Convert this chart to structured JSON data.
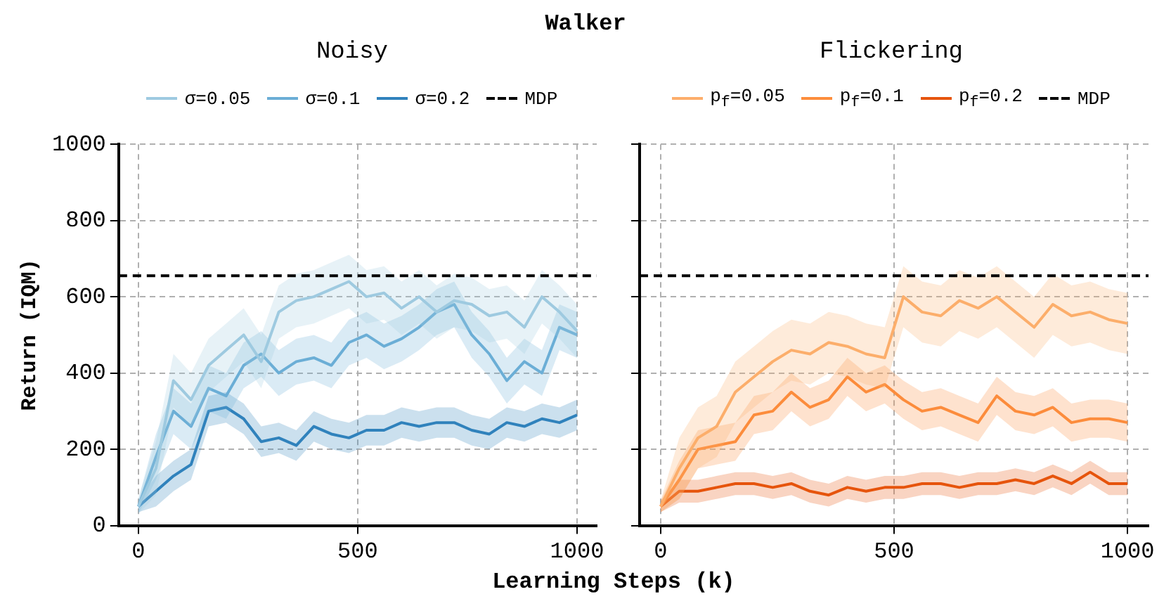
{
  "chart_data": [
    {
      "type": "line",
      "title": "Noisy",
      "annotations": [
        "Walker"
      ],
      "xlabel": "Learning Steps (k)",
      "ylabel": "Return (IQM)",
      "x": [
        0,
        40,
        80,
        120,
        160,
        200,
        240,
        280,
        320,
        360,
        400,
        440,
        480,
        520,
        560,
        600,
        640,
        680,
        720,
        760,
        800,
        840,
        880,
        920,
        960,
        1000
      ],
      "xlim": [
        -45,
        1045
      ],
      "ylim": [
        0,
        1000
      ],
      "xticks": [
        0,
        500,
        1000
      ],
      "yticks": [
        0,
        200,
        400,
        600,
        800,
        1000
      ],
      "grid": true,
      "legend": "top",
      "line_style": "solid",
      "ref_lines": [
        {
          "axis": "y",
          "value": 655,
          "label": "MDP",
          "color": "#000000",
          "line_style": "dashed"
        }
      ],
      "series": [
        {
          "name": "σ=0.05",
          "color": "#9ecae1",
          "values": [
            50,
            150,
            380,
            330,
            420,
            460,
            500,
            430,
            560,
            590,
            600,
            620,
            640,
            600,
            610,
            570,
            600,
            560,
            590,
            580,
            550,
            560,
            520,
            600,
            560,
            510
          ],
          "lower": [
            30,
            80,
            310,
            260,
            350,
            390,
            430,
            360,
            490,
            520,
            530,
            550,
            570,
            530,
            540,
            500,
            530,
            490,
            520,
            510,
            480,
            490,
            450,
            530,
            490,
            440
          ],
          "upper": [
            70,
            220,
            450,
            400,
            490,
            530,
            570,
            500,
            630,
            660,
            670,
            690,
            710,
            670,
            680,
            640,
            670,
            630,
            660,
            650,
            620,
            630,
            590,
            670,
            630,
            580
          ]
        },
        {
          "name": "σ=0.1",
          "color": "#6baed6",
          "values": [
            50,
            180,
            300,
            260,
            360,
            340,
            420,
            450,
            400,
            430,
            440,
            420,
            480,
            500,
            470,
            490,
            520,
            560,
            580,
            500,
            450,
            380,
            430,
            400,
            520,
            500
          ],
          "lower": [
            30,
            120,
            240,
            200,
            300,
            280,
            360,
            390,
            340,
            370,
            380,
            360,
            420,
            440,
            410,
            430,
            460,
            500,
            520,
            440,
            390,
            320,
            370,
            340,
            460,
            440
          ],
          "upper": [
            70,
            240,
            360,
            320,
            420,
            400,
            480,
            510,
            460,
            490,
            500,
            480,
            540,
            560,
            530,
            550,
            580,
            620,
            640,
            560,
            510,
            440,
            490,
            460,
            580,
            560
          ]
        },
        {
          "name": "σ=0.2",
          "color": "#3182bd",
          "values": [
            50,
            90,
            130,
            160,
            300,
            310,
            280,
            220,
            230,
            210,
            260,
            240,
            230,
            250,
            250,
            270,
            260,
            270,
            270,
            250,
            240,
            270,
            260,
            280,
            270,
            290
          ],
          "lower": [
            35,
            50,
            90,
            120,
            260,
            270,
            240,
            180,
            190,
            170,
            220,
            200,
            190,
            210,
            210,
            230,
            220,
            230,
            230,
            210,
            200,
            230,
            220,
            240,
            230,
            250
          ],
          "upper": [
            65,
            130,
            170,
            200,
            340,
            350,
            320,
            260,
            270,
            250,
            300,
            280,
            270,
            290,
            290,
            310,
            300,
            310,
            310,
            290,
            280,
            310,
            300,
            320,
            310,
            330
          ]
        }
      ]
    },
    {
      "type": "line",
      "title": "Flickering",
      "x": [
        0,
        40,
        80,
        120,
        160,
        200,
        240,
        280,
        320,
        360,
        400,
        440,
        480,
        520,
        560,
        600,
        640,
        680,
        720,
        760,
        800,
        840,
        880,
        920,
        960,
        1000
      ],
      "xlim": [
        -45,
        1045
      ],
      "ylim": [
        0,
        1000
      ],
      "xticks": [
        0,
        500,
        1000
      ],
      "yticks": [
        0,
        200,
        400,
        600,
        800,
        1000
      ],
      "tick_labels": "x",
      "grid": true,
      "legend": "top",
      "line_style": "solid",
      "ref_lines": [
        {
          "axis": "y",
          "value": 655,
          "label": "MDP",
          "color": "#000000",
          "line_style": "dashed"
        }
      ],
      "series": [
        {
          "name": "p$_{f}$=0.05",
          "color": "#fdae6b",
          "values": [
            50,
            150,
            230,
            260,
            350,
            390,
            430,
            460,
            450,
            480,
            470,
            450,
            440,
            600,
            560,
            550,
            590,
            570,
            600,
            560,
            520,
            580,
            550,
            560,
            540,
            530
          ],
          "lower": [
            35,
            70,
            150,
            180,
            270,
            310,
            350,
            380,
            370,
            400,
            390,
            370,
            360,
            520,
            480,
            470,
            510,
            490,
            520,
            480,
            440,
            500,
            470,
            480,
            460,
            450
          ],
          "upper": [
            65,
            230,
            310,
            340,
            430,
            470,
            510,
            540,
            530,
            560,
            550,
            530,
            520,
            680,
            640,
            630,
            670,
            650,
            680,
            640,
            600,
            660,
            630,
            640,
            620,
            610
          ]
        },
        {
          "name": "p$_{f}$=0.1",
          "color": "#fd8d3c",
          "values": [
            50,
            120,
            200,
            210,
            220,
            290,
            300,
            350,
            310,
            330,
            390,
            350,
            370,
            330,
            300,
            310,
            290,
            270,
            340,
            300,
            290,
            310,
            270,
            280,
            280,
            270
          ],
          "lower": [
            35,
            70,
            150,
            160,
            170,
            240,
            250,
            300,
            260,
            280,
            340,
            300,
            320,
            280,
            250,
            260,
            240,
            220,
            290,
            250,
            240,
            260,
            220,
            230,
            230,
            220
          ],
          "upper": [
            65,
            170,
            250,
            260,
            270,
            340,
            350,
            400,
            360,
            380,
            440,
            400,
            420,
            380,
            350,
            360,
            340,
            320,
            390,
            350,
            340,
            360,
            320,
            330,
            330,
            320
          ]
        },
        {
          "name": "p$_{f}$=0.2",
          "color": "#e6550d",
          "values": [
            50,
            90,
            90,
            100,
            110,
            110,
            100,
            110,
            90,
            80,
            100,
            90,
            100,
            100,
            110,
            110,
            100,
            110,
            110,
            120,
            110,
            130,
            110,
            140,
            110,
            110
          ],
          "lower": [
            35,
            60,
            60,
            70,
            80,
            80,
            70,
            80,
            60,
            50,
            70,
            60,
            70,
            70,
            80,
            80,
            70,
            80,
            80,
            90,
            80,
            100,
            80,
            110,
            80,
            80
          ],
          "upper": [
            65,
            120,
            120,
            130,
            140,
            140,
            130,
            140,
            120,
            110,
            130,
            120,
            130,
            130,
            140,
            140,
            130,
            140,
            140,
            150,
            140,
            160,
            140,
            170,
            140,
            140
          ]
        }
      ]
    }
  ]
}
